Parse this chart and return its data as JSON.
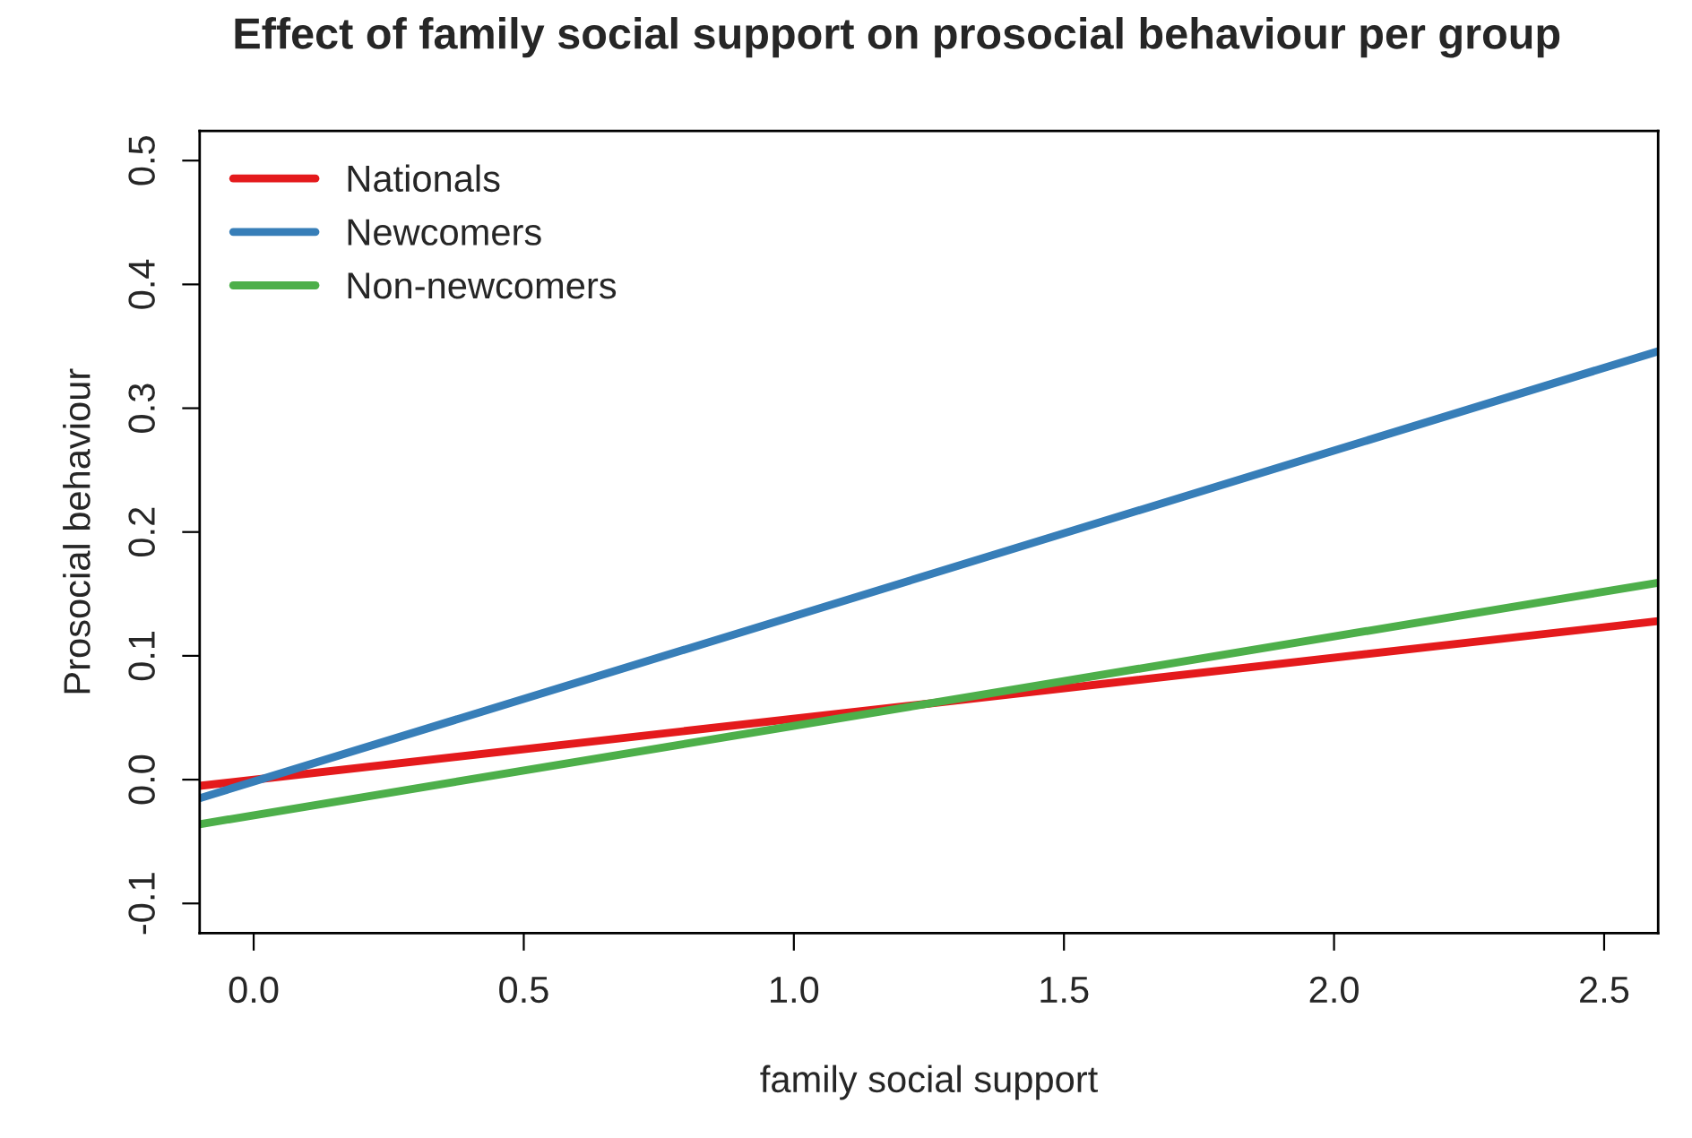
{
  "chart_data": {
    "type": "line",
    "title": "Effect of family social support on prosocial behaviour per group",
    "xlabel": "family social support",
    "ylabel": "Prosocial behaviour",
    "x": [
      -0.1,
      2.6
    ],
    "series": [
      {
        "name": "Nationals",
        "color": "#e41a1c",
        "values": [
          -0.005,
          0.128
        ]
      },
      {
        "name": "Newcomers",
        "color": "#377eb8",
        "values": [
          -0.015,
          0.346
        ]
      },
      {
        "name": "Non-newcomers",
        "color": "#4daf4a",
        "values": [
          -0.036,
          0.159
        ]
      }
    ],
    "xlim": [
      -0.1,
      2.6
    ],
    "xticks": [
      {
        "value": 0,
        "label": "0.0"
      },
      0.5,
      {
        "value": 1,
        "label": "1.0"
      },
      1.5,
      {
        "value": 2,
        "label": "2.0"
      },
      2.5
    ],
    "ylim": [
      -0.124,
      0.524
    ],
    "yticks": [
      -0.1,
      {
        "value": 0,
        "label": "0.0"
      },
      0.1,
      0.2,
      0.3,
      0.4,
      0.5
    ],
    "legend": "top left",
    "grid": false,
    "marker": "none",
    "line_style": "solid"
  }
}
